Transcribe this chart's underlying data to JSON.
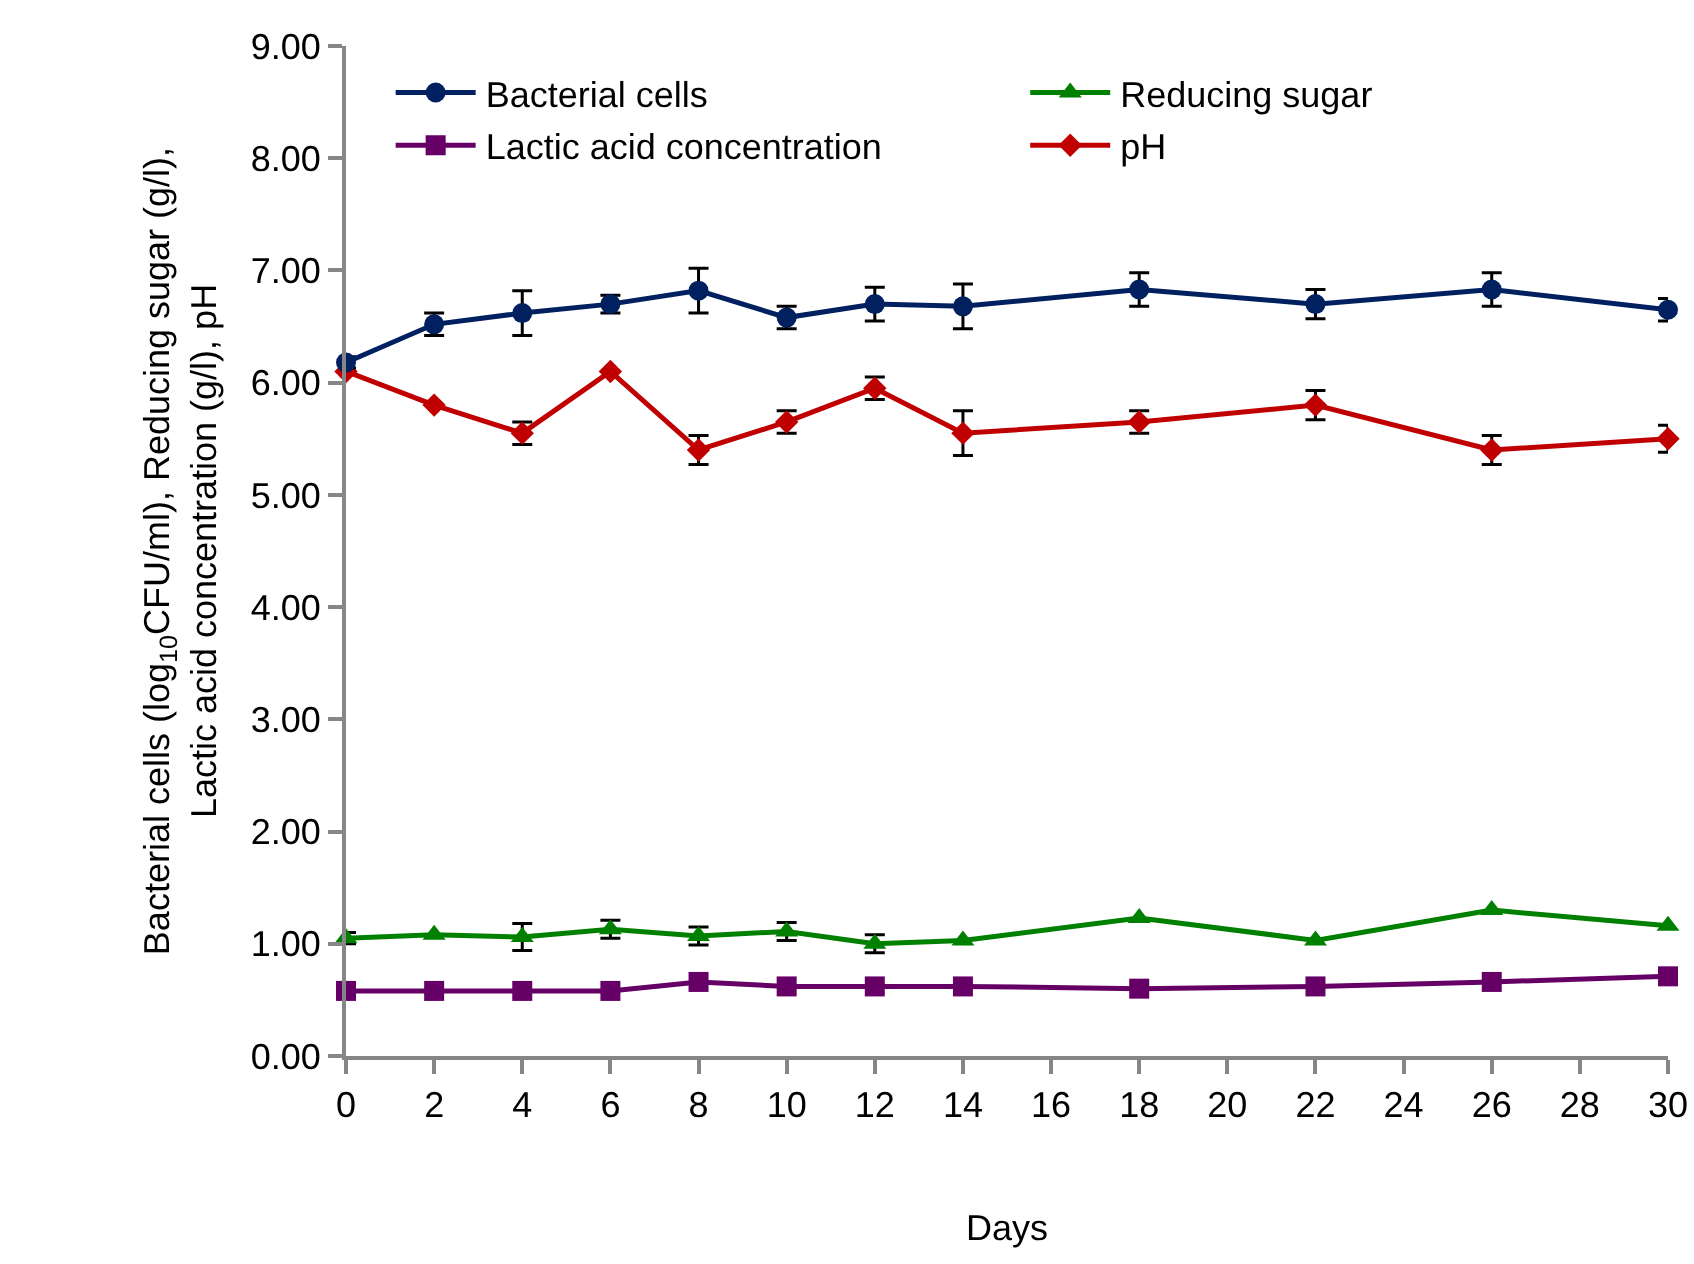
{
  "chart_data": {
    "type": "line",
    "xlabel": "Days",
    "ylabel": "Bacterial cells (log$_{10}$CFU/ml), Reducing sugar (g/l),\nLactic acid concentration (g/l), pH",
    "x": [
      0,
      2,
      4,
      6,
      8,
      10,
      12,
      14,
      18,
      22,
      26,
      30
    ],
    "xlim": [
      0,
      30
    ],
    "xticks": [
      0,
      2,
      4,
      6,
      8,
      10,
      12,
      14,
      16,
      18,
      20,
      22,
      24,
      26,
      28,
      30
    ],
    "ylim": [
      0,
      9
    ],
    "yticks": [
      {
        "value": 0,
        "label": "0.00"
      },
      {
        "value": 1,
        "label": "1.00"
      },
      {
        "value": 2,
        "label": "2.00"
      },
      {
        "value": 3,
        "label": "3.00"
      },
      {
        "value": 4,
        "label": "4.00"
      },
      {
        "value": 5,
        "label": "5.00"
      },
      {
        "value": 6,
        "label": "6.00"
      },
      {
        "value": 7,
        "label": "7.00"
      },
      {
        "value": 8,
        "label": "8.00"
      },
      {
        "value": 9,
        "label": "9.00"
      }
    ],
    "grid": false,
    "legend": "top",
    "line_style": "solid",
    "series": [
      {
        "name": "Bacterial cells",
        "color": "#002060",
        "marker": "circle",
        "values": [
          6.18,
          6.52,
          6.62,
          6.7,
          6.82,
          6.58,
          6.7,
          6.68,
          6.83,
          6.7,
          6.83,
          6.65
        ],
        "errors": [
          0.05,
          0.1,
          0.2,
          0.08,
          0.2,
          0.1,
          0.15,
          0.2,
          0.15,
          0.13,
          0.15,
          0.1
        ]
      },
      {
        "name": "Reducing sugar",
        "color": "#008000",
        "marker": "triangle",
        "values": [
          1.05,
          1.08,
          1.06,
          1.13,
          1.07,
          1.11,
          1.0,
          1.03,
          1.23,
          1.03,
          1.3,
          1.16
        ],
        "errors": [
          0.05,
          null,
          0.12,
          0.08,
          0.08,
          0.08,
          0.08,
          null,
          null,
          null,
          null,
          null
        ]
      },
      {
        "name": "Lactic acid concentration",
        "color": "#660066",
        "marker": "square",
        "values": [
          0.58,
          0.58,
          0.58,
          0.58,
          0.66,
          0.62,
          0.62,
          0.62,
          0.6,
          0.62,
          0.66,
          0.71
        ]
      },
      {
        "name": "pH",
        "color": "#c00000",
        "marker": "diamond",
        "values": [
          6.1,
          5.8,
          5.55,
          6.1,
          5.4,
          5.65,
          5.95,
          5.55,
          5.65,
          5.8,
          5.4,
          5.5
        ],
        "errors": [
          null,
          null,
          0.1,
          null,
          0.13,
          0.1,
          0.1,
          0.2,
          0.1,
          0.13,
          0.13,
          0.12
        ]
      }
    ]
  }
}
